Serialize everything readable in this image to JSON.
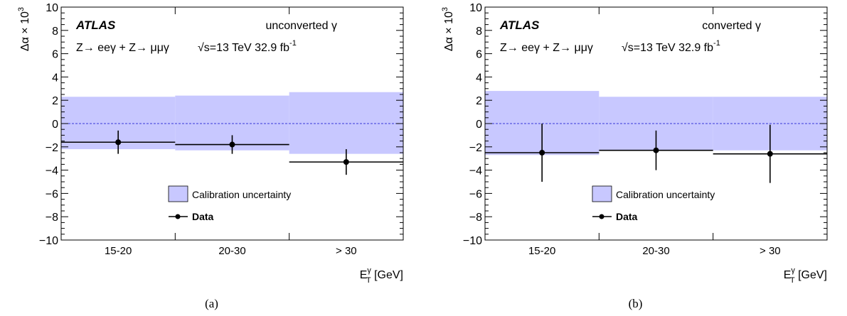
{
  "colors": {
    "band": "#c8c8ff",
    "zero_line": "#3a3ad8",
    "data": "#000000"
  },
  "chart_data": [
    {
      "type": "bar",
      "panel_label": "(a)",
      "experiment": "ATLAS",
      "category_label": "unconverted γ",
      "process": "Z→ eeγ + Z→ μμγ",
      "energy": "√s=13 TeV 32.9 fb",
      "lumi_exponent": "-1",
      "ylabel_main": "Δα × 10",
      "ylabel_exp": "3",
      "xlabel_main": "E",
      "xlabel_sup": "γ",
      "xlabel_sub": "T",
      "xlabel_unit": "[GeV]",
      "ylim": [
        -10,
        10
      ],
      "yticks": [
        "10",
        "8",
        "6",
        "4",
        "2",
        "0",
        "−2",
        "−4",
        "−6",
        "−8",
        "−10"
      ],
      "categories": [
        "15-20",
        "20-30",
        "> 30"
      ],
      "bin_edges": [
        15,
        20,
        30,
        40
      ],
      "legend": {
        "band": "Calibration uncertainty",
        "data": "Data"
      },
      "series": [
        {
          "name": "Calibration uncertainty",
          "kind": "band",
          "upper": [
            2.3,
            2.4,
            2.7
          ],
          "lower": [
            -2.2,
            -2.3,
            -2.6
          ]
        },
        {
          "name": "Data",
          "kind": "points",
          "values": [
            -1.6,
            -1.8,
            -3.3
          ],
          "err_up": [
            1.0,
            0.8,
            1.1
          ],
          "err_down": [
            1.0,
            0.8,
            1.1
          ]
        }
      ]
    },
    {
      "type": "bar",
      "panel_label": "(b)",
      "experiment": "ATLAS",
      "category_label": "converted γ",
      "process": "Z→ eeγ + Z→ μμγ",
      "energy": "√s=13 TeV 32.9 fb",
      "lumi_exponent": "-1",
      "ylabel_main": "Δα × 10",
      "ylabel_exp": "3",
      "xlabel_main": "E",
      "xlabel_sup": "γ",
      "xlabel_sub": "T",
      "xlabel_unit": "[GeV]",
      "ylim": [
        -10,
        10
      ],
      "yticks": [
        "10",
        "8",
        "6",
        "4",
        "2",
        "0",
        "−2",
        "−4",
        "−6",
        "−8",
        "−10"
      ],
      "categories": [
        "15-20",
        "20-30",
        "> 30"
      ],
      "bin_edges": [
        15,
        20,
        30,
        40
      ],
      "legend": {
        "band": "Calibration uncertainty",
        "data": "Data"
      },
      "series": [
        {
          "name": "Calibration uncertainty",
          "kind": "band",
          "upper": [
            2.8,
            2.3,
            2.3
          ],
          "lower": [
            -2.7,
            -2.3,
            -2.3
          ]
        },
        {
          "name": "Data",
          "kind": "points",
          "values": [
            -2.5,
            -2.3,
            -2.6
          ],
          "err_up": [
            2.5,
            1.7,
            2.5
          ],
          "err_down": [
            2.5,
            1.7,
            2.5
          ]
        }
      ]
    }
  ]
}
